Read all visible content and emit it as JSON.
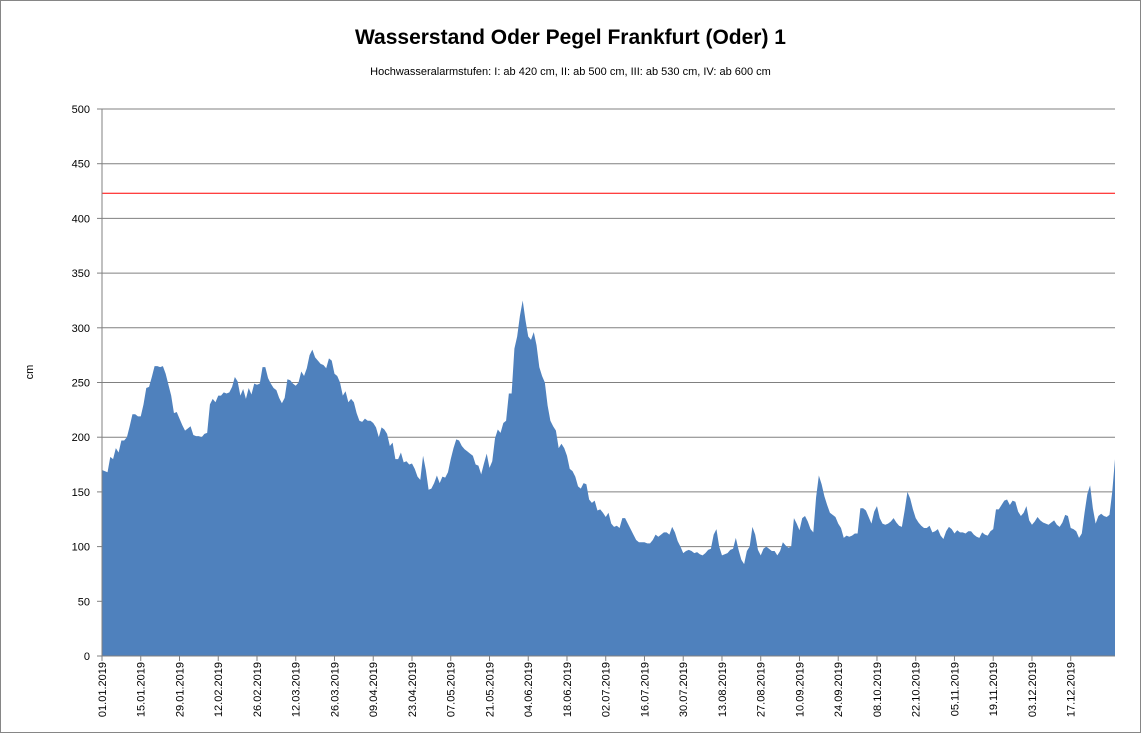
{
  "chart_data": {
    "type": "area",
    "title": "Wasserstand Oder Pegel Frankfurt (Oder) 1",
    "subtitle": "Hochwasseralarmstufen: I: ab 420 cm, II: ab 500 cm, III: ab 530 cm,  IV: ab 600 cm",
    "xlabel": "",
    "ylabel": "cm",
    "ylim": [
      0,
      500
    ],
    "yticks": [
      0,
      50,
      100,
      150,
      200,
      250,
      300,
      350,
      400,
      450,
      500
    ],
    "grid": true,
    "legend": "none",
    "colors": {
      "area": "#4F81BD",
      "threshold": "#FF0000",
      "grid": "#808080"
    },
    "threshold_line": 423,
    "x_tick_labels": [
      "01.01.2019",
      "15.01.2019",
      "29.01.2019",
      "12.02.2019",
      "26.02.2019",
      "12.03.2019",
      "26.03.2019",
      "09.04.2019",
      "23.04.2019",
      "07.05.2019",
      "21.05.2019",
      "04.06.2019",
      "18.06.2019",
      "02.07.2019",
      "16.07.2019",
      "30.07.2019",
      "13.08.2019",
      "27.08.2019",
      "10.09.2019",
      "24.09.2019",
      "08.10.2019",
      "22.10.2019",
      "05.11.2019",
      "19.11.2019",
      "03.12.2019",
      "17.12.2019"
    ],
    "series": [
      {
        "x_start": "01.01.2019",
        "x_end": "31.12.2019",
        "values": [
          170,
          169,
          168,
          182,
          180,
          190,
          186,
          197,
          197,
          200,
          210,
          221,
          221,
          219,
          219,
          230,
          245,
          246,
          255,
          265,
          265,
          264,
          265,
          258,
          248,
          238,
          222,
          223,
          217,
          211,
          206,
          208,
          210,
          202,
          201,
          201,
          200,
          203,
          204,
          230,
          235,
          232,
          238,
          238,
          241,
          240,
          241,
          246,
          255,
          251,
          238,
          244,
          235,
          245,
          239,
          249,
          248,
          249,
          264,
          264,
          254,
          249,
          245,
          243,
          236,
          231,
          236,
          253,
          252,
          249,
          247,
          250,
          260,
          256,
          263,
          275,
          280,
          273,
          270,
          267,
          266,
          263,
          272,
          270,
          258,
          256,
          250,
          238,
          242,
          232,
          235,
          232,
          222,
          215,
          214,
          217,
          215,
          215,
          213,
          209,
          200,
          209,
          207,
          203,
          192,
          195,
          180,
          180,
          186,
          177,
          178,
          175,
          176,
          171,
          164,
          161,
          183,
          170,
          152,
          153,
          158,
          165,
          158,
          164,
          163,
          168,
          180,
          190,
          198,
          197,
          192,
          189,
          187,
          185,
          183,
          175,
          174,
          166,
          176,
          185,
          172,
          178,
          199,
          207,
          204,
          213,
          215,
          240,
          240,
          281,
          292,
          311,
          325,
          307,
          292,
          289,
          296,
          284,
          264,
          256,
          250,
          229,
          215,
          210,
          206,
          190,
          194,
          190,
          183,
          171,
          169,
          164,
          155,
          153,
          158,
          157,
          143,
          140,
          142,
          133,
          134,
          131,
          127,
          131,
          121,
          118,
          119,
          117,
          126,
          126,
          121,
          116,
          111,
          106,
          104,
          104,
          104,
          103,
          103,
          106,
          111,
          109,
          111,
          113,
          113,
          111,
          118,
          113,
          105,
          100,
          94,
          96,
          97,
          96,
          94,
          95,
          93,
          92,
          94,
          97,
          98,
          111,
          116,
          100,
          92,
          93,
          94,
          97,
          98,
          108,
          97,
          88,
          84,
          96,
          100,
          118,
          111,
          97,
          92,
          98,
          100,
          98,
          96,
          96,
          92,
          96,
          104,
          101,
          99,
          100,
          126,
          121,
          115,
          126,
          128,
          123,
          116,
          113,
          145,
          165,
          157,
          146,
          138,
          131,
          129,
          127,
          121,
          117,
          108,
          110,
          109,
          110,
          112,
          112,
          135,
          135,
          133,
          127,
          121,
          132,
          137,
          126,
          121,
          120,
          121,
          123,
          126,
          122,
          119,
          118,
          133,
          150,
          144,
          134,
          126,
          122,
          119,
          117,
          117,
          119,
          113,
          114,
          116,
          110,
          107,
          114,
          118,
          116,
          112,
          115,
          113,
          113,
          112,
          114,
          114,
          111,
          109,
          108,
          113,
          111,
          110,
          114,
          116,
          134,
          134,
          138,
          142,
          143,
          138,
          142,
          141,
          132,
          128,
          131,
          137,
          124,
          120,
          123,
          127,
          124,
          122,
          121,
          120,
          122,
          124,
          120,
          118,
          122,
          129,
          128,
          117,
          116,
          114,
          108,
          112,
          131,
          148,
          156,
          135,
          121,
          128,
          130,
          128,
          127,
          129,
          150,
          180
        ]
      }
    ]
  }
}
